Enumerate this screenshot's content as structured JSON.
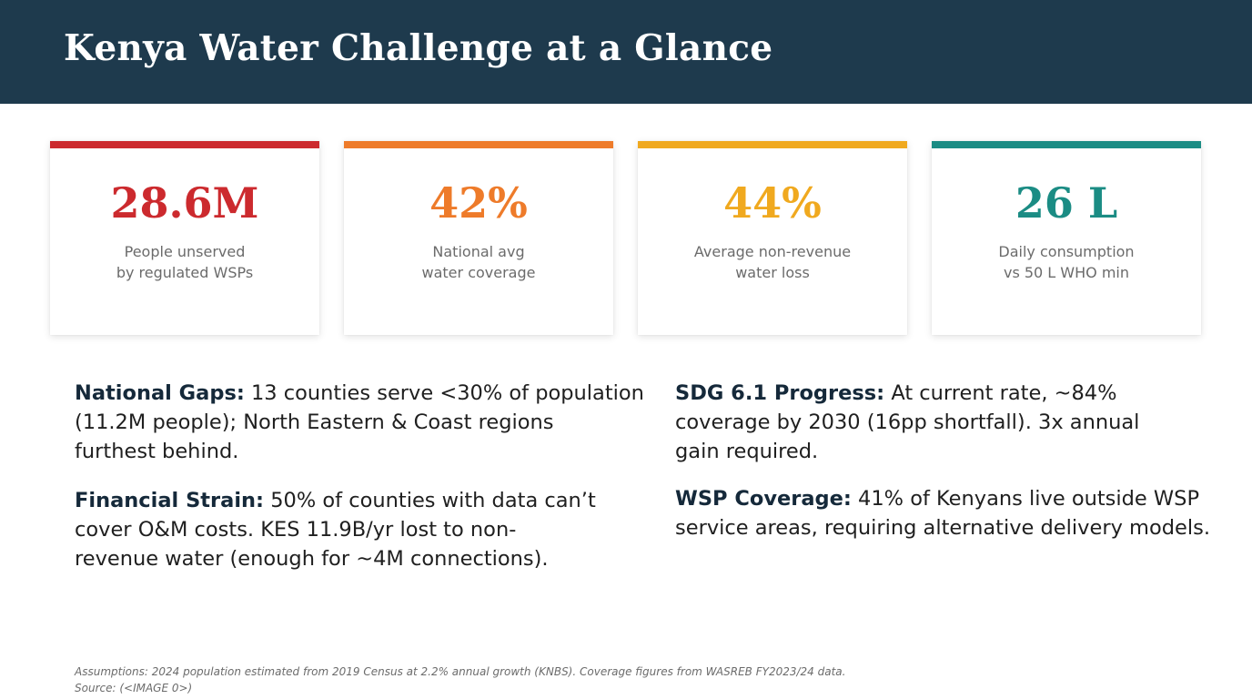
{
  "header": {
    "title": "Kenya Water Challenge at a Glance",
    "background": "#1e3a4d"
  },
  "stats": [
    {
      "value": "28.6M",
      "label_line1": "People unserved",
      "label_line2": "by regulated WSPs",
      "color": "#cc2a2e"
    },
    {
      "value": "42%",
      "label_line1": "National avg",
      "label_line2": "water coverage",
      "color": "#ee7b2a"
    },
    {
      "value": "44%",
      "label_line1": "Average non-revenue",
      "label_line2": "water loss",
      "color": "#f0a91f"
    },
    {
      "value": "26 L",
      "label_line1": "Daily consumption",
      "label_line2": "vs 50 L WHO min",
      "color": "#1b8c84"
    }
  ],
  "paragraphs": {
    "national_gaps": {
      "lead": "National Gaps:",
      "line1": " 13 counties serve <30% of population",
      "line2": "(11.2M people); North Eastern & Coast regions",
      "line3": "furthest behind."
    },
    "financial_strain": {
      "lead": "Financial Strain:",
      "line1": " 50% of counties with data can’t",
      "line2": "cover O&M costs. KES 11.9B/yr lost to non-",
      "line3": "revenue water (enough for ~4M connections)."
    },
    "sdg_progress": {
      "lead": "SDG 6.1 Progress:",
      "line1": " At current rate, ~84%",
      "line2": "coverage by 2030 (16pp shortfall). 3x annual",
      "line3": "gain required."
    },
    "wsp_coverage": {
      "lead": "WSP Coverage:",
      "line1": " 41% of Kenyans live outside WSP",
      "line2": "service areas, requiring alternative delivery models."
    }
  },
  "footnote": {
    "assumptions": "Assumptions: 2024 population estimated from 2019 Census at 2.2% annual growth (KNBS). Coverage figures from WASREB FY2023/24 data.",
    "source": "Source: (<IMAGE 0>)"
  }
}
